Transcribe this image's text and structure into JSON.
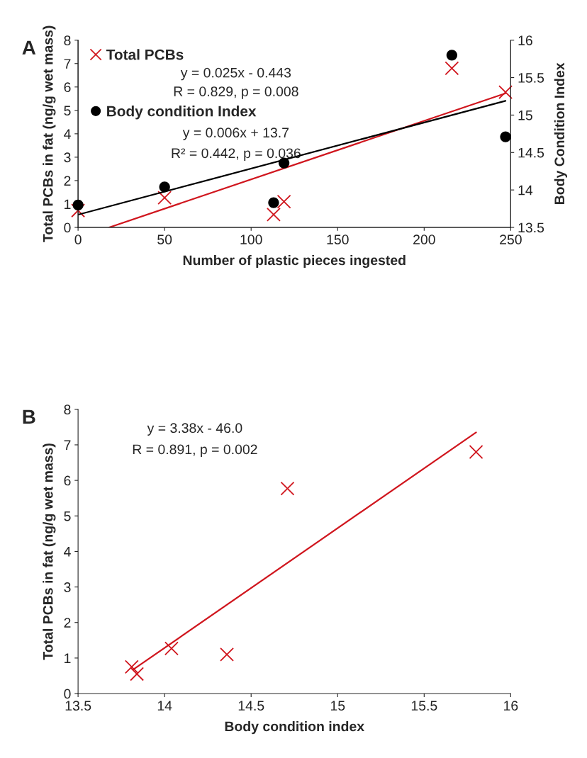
{
  "chart_data": [
    {
      "type": "scatter",
      "title": "A",
      "xlabel": "Number of plastic pieces ingested",
      "ylabel": "Total PCBs in fat (ng/g wet mass)",
      "y2label": "Body Condition Index",
      "xlim": [
        0,
        250
      ],
      "xticks": [
        0,
        50,
        100,
        150,
        200,
        250
      ],
      "ylim": [
        0,
        8
      ],
      "yticks": [
        0,
        1,
        2,
        3,
        4,
        5,
        6,
        7,
        8
      ],
      "y2lim": [
        13.5,
        16
      ],
      "y2ticks": [
        13.5,
        14,
        14.5,
        15,
        15.5,
        16
      ],
      "grid": false,
      "legend": "top left",
      "series": [
        {
          "type": "scatter",
          "name": "Total PCBs",
          "color": "#d0161e",
          "marker": "cross",
          "x": [
            0,
            50,
            113,
            119,
            216,
            247
          ],
          "values": [
            0.72,
            1.27,
            0.55,
            1.1,
            6.8,
            5.78
          ]
        },
        {
          "type": "scatter",
          "name": "Body condition Index",
          "color": "#000000",
          "marker": "circle",
          "axis": "y2",
          "x": [
            0,
            50,
            113,
            119,
            216,
            247
          ],
          "values": [
            13.8,
            14.04,
            13.83,
            14.36,
            15.8,
            14.71
          ]
        },
        {
          "type": "line",
          "color": "#d0161e",
          "marker": "none",
          "x": [
            18,
            247
          ],
          "values": [
            0,
            5.73
          ]
        },
        {
          "type": "line",
          "color": "#000000",
          "marker": "none",
          "axis": "y2",
          "x": [
            0,
            247
          ],
          "values": [
            13.67,
            15.19
          ]
        }
      ],
      "annotations": [
        "y = 0.025x - 0.443",
        "R = 0.829, p = 0.008",
        "y = 0.006x + 13.7",
        "R² = 0.442, p = 0.036"
      ]
    },
    {
      "type": "scatter",
      "title": "B",
      "xlabel": "Body condition index",
      "ylabel": "Total PCBs in fat (ng/g wet mass)",
      "xlim": [
        13.5,
        16
      ],
      "xticks": [
        13.5,
        14,
        14.5,
        15,
        15.5,
        16
      ],
      "ylim": [
        0,
        8
      ],
      "yticks": [
        0,
        1,
        2,
        3,
        4,
        5,
        6,
        7,
        8
      ],
      "grid": false,
      "legend": false,
      "series": [
        {
          "type": "scatter",
          "color": "#d0161e",
          "marker": "cross",
          "x": [
            13.81,
            13.84,
            14.04,
            14.36,
            14.71,
            15.8
          ],
          "values": [
            0.75,
            0.55,
            1.27,
            1.1,
            5.77,
            6.8
          ]
        },
        {
          "type": "line",
          "color": "#d0161e",
          "marker": "none",
          "x": [
            13.82,
            15.8
          ],
          "values": [
            0.68,
            7.35
          ]
        }
      ],
      "annotations": [
        "y = 3.38x - 46.0",
        "R = 0.891, p = 0.002"
      ]
    }
  ]
}
